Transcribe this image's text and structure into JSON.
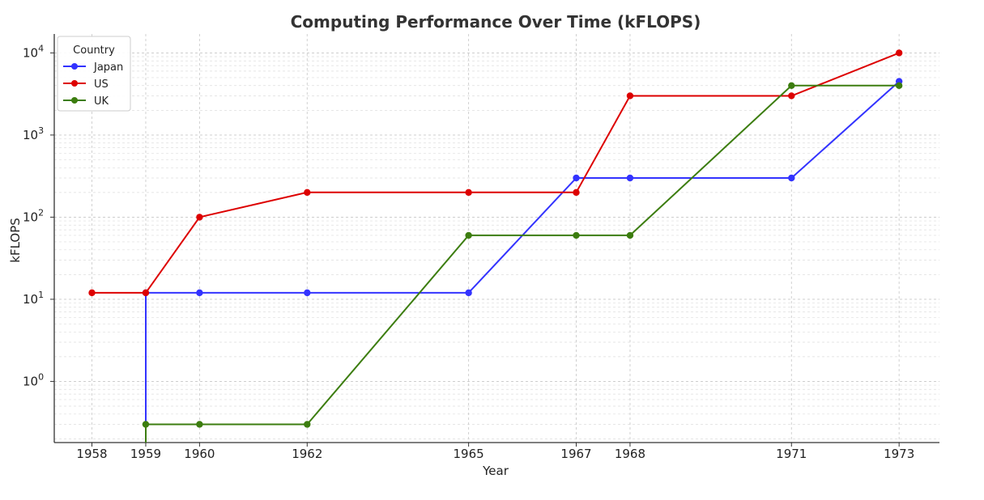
{
  "chart_data": {
    "type": "line",
    "title": "Computing Performance Over Time (kFLOPS)",
    "xlabel": "Year",
    "ylabel": "kFLOPS",
    "yscale": "log",
    "ylim": [
      0.18,
      17000
    ],
    "xlim": [
      1957.3,
      1973.75
    ],
    "x_ticks": [
      1958,
      1959,
      1960,
      1962,
      1965,
      1967,
      1968,
      1971,
      1973
    ],
    "y_ticks": [
      {
        "value": 1,
        "base": "10",
        "exp": "0"
      },
      {
        "value": 10,
        "base": "10",
        "exp": "1"
      },
      {
        "value": 100,
        "base": "10",
        "exp": "2"
      },
      {
        "value": 1000,
        "base": "10",
        "exp": "3"
      },
      {
        "value": 10000,
        "base": "10",
        "exp": "4"
      }
    ],
    "grid": true,
    "legend": {
      "title": "Country",
      "position": "top-left"
    },
    "series": [
      {
        "name": "Japan",
        "color": "#3333ff",
        "points": [
          [
            1959,
            0.1
          ],
          [
            1959,
            12
          ],
          [
            1960,
            12
          ],
          [
            1962,
            12
          ],
          [
            1965,
            12
          ],
          [
            1967,
            300
          ],
          [
            1968,
            300
          ],
          [
            1971,
            300
          ],
          [
            1973,
            4500
          ]
        ]
      },
      {
        "name": "US",
        "color": "#dd0000",
        "points": [
          [
            1958,
            12
          ],
          [
            1959,
            12
          ],
          [
            1960,
            100
          ],
          [
            1962,
            200
          ],
          [
            1965,
            200
          ],
          [
            1967,
            200
          ],
          [
            1968,
            3000
          ],
          [
            1971,
            3000
          ],
          [
            1973,
            10000
          ]
        ]
      },
      {
        "name": "UK",
        "color": "#3c7d0f",
        "points": [
          [
            1959,
            0.1
          ],
          [
            1959,
            0.3
          ],
          [
            1960,
            0.3
          ],
          [
            1962,
            0.3
          ],
          [
            1965,
            60
          ],
          [
            1967,
            60
          ],
          [
            1968,
            60
          ],
          [
            1971,
            4000
          ],
          [
            1973,
            4000
          ]
        ]
      }
    ]
  }
}
